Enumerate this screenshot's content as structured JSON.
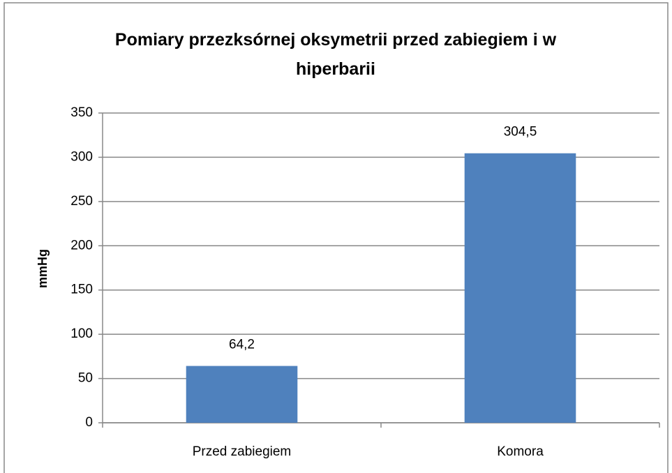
{
  "chart_data": {
    "type": "bar",
    "title": "Pomiary przezksórnej oksymetrii przed zabiegiem i w hiperbarii",
    "ylabel": "mmHg",
    "categories": [
      "Przed zabiegiem",
      "Komora"
    ],
    "values": [
      64.2,
      304.5
    ],
    "value_labels": [
      "64,2",
      "304,5"
    ],
    "color": "#4f81bd",
    "ylim": [
      0,
      350
    ],
    "yticks": [
      0,
      50,
      100,
      150,
      200,
      250,
      300,
      350
    ],
    "grid": true
  }
}
